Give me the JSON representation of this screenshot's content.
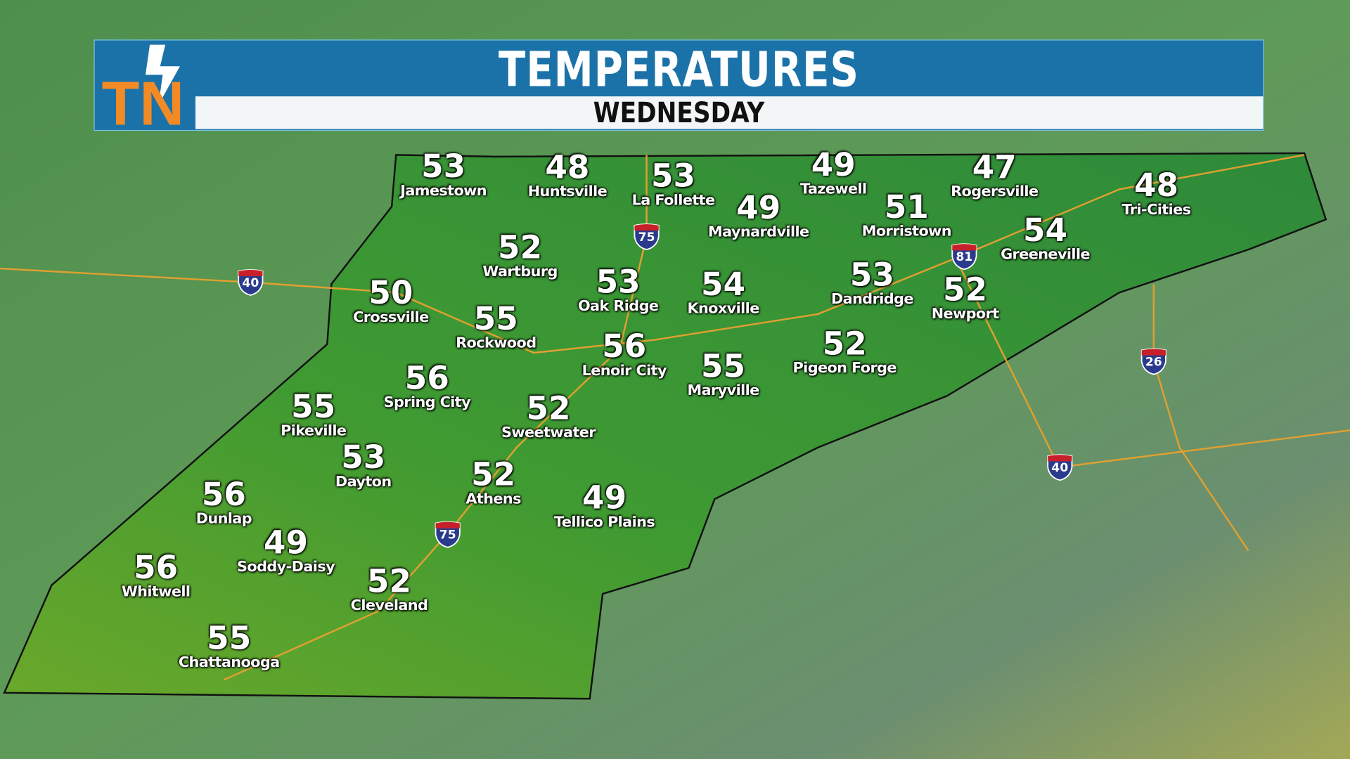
{
  "header": {
    "title": "TEMPERATURES",
    "subtitle": "WEDNESDAY",
    "logo_text": "TN"
  },
  "colors": {
    "header_blue": "#1b72a8",
    "logo_orange": "#f28a25",
    "map_green": "#3f9a32",
    "interstate_blue": "#2a3a8c",
    "interstate_red": "#c8202a"
  },
  "cities": [
    {
      "name": "Jamestown",
      "temp": "53"
    },
    {
      "name": "Huntsville",
      "temp": "48"
    },
    {
      "name": "La Follette",
      "temp": "53"
    },
    {
      "name": "Tazewell",
      "temp": "49"
    },
    {
      "name": "Rogersville",
      "temp": "47"
    },
    {
      "name": "Tri-Cities",
      "temp": "48"
    },
    {
      "name": "Maynardville",
      "temp": "49"
    },
    {
      "name": "Morristown",
      "temp": "51"
    },
    {
      "name": "Greeneville",
      "temp": "54"
    },
    {
      "name": "Wartburg",
      "temp": "52"
    },
    {
      "name": "Oak Ridge",
      "temp": "53"
    },
    {
      "name": "Knoxville",
      "temp": "54"
    },
    {
      "name": "Dandridge",
      "temp": "53"
    },
    {
      "name": "Newport",
      "temp": "52"
    },
    {
      "name": "Crossville",
      "temp": "50"
    },
    {
      "name": "Rockwood",
      "temp": "55"
    },
    {
      "name": "Lenoir City",
      "temp": "56"
    },
    {
      "name": "Maryville",
      "temp": "55"
    },
    {
      "name": "Pigeon Forge",
      "temp": "52"
    },
    {
      "name": "Spring City",
      "temp": "56"
    },
    {
      "name": "Pikeville",
      "temp": "55"
    },
    {
      "name": "Sweetwater",
      "temp": "52"
    },
    {
      "name": "Dayton",
      "temp": "53"
    },
    {
      "name": "Athens",
      "temp": "52"
    },
    {
      "name": "Tellico Plains",
      "temp": "49"
    },
    {
      "name": "Dunlap",
      "temp": "56"
    },
    {
      "name": "Soddy-Daisy",
      "temp": "49"
    },
    {
      "name": "Whitwell",
      "temp": "56"
    },
    {
      "name": "Cleveland",
      "temp": "52"
    },
    {
      "name": "Chattanooga",
      "temp": "55"
    }
  ],
  "interstates": [
    "40",
    "75",
    "81",
    "26",
    "40",
    "75"
  ]
}
